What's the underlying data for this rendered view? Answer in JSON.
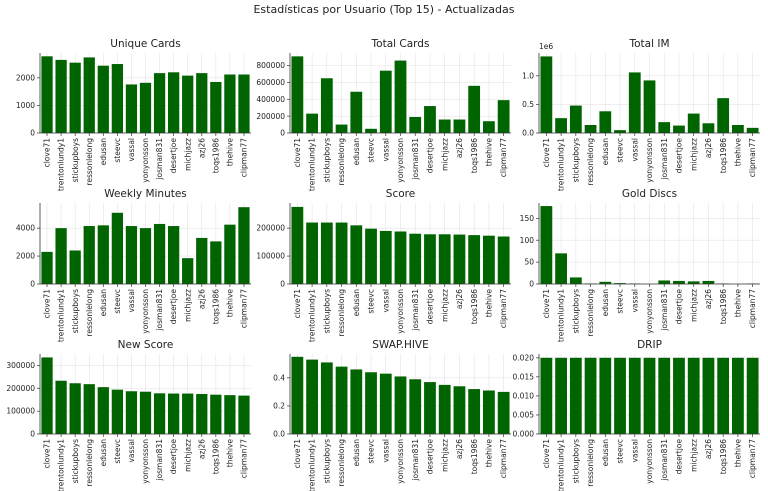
{
  "suptitle": "Estadísticas por Usuario (Top 15) - Actualizadas",
  "bar_color": "#006400",
  "chart_data": [
    {
      "type": "bar",
      "title": "Unique Cards",
      "categories": [
        "clove71",
        "trentonlundy1",
        "stickupboys",
        "ressonlelong",
        "edusan",
        "steevc",
        "vassal",
        "yonyonsson",
        "josman831",
        "desertjoe",
        "michjazz",
        "azj26",
        "toqs1986",
        "thehive",
        "clipman77"
      ],
      "values": [
        2780,
        2650,
        2550,
        2740,
        2440,
        2500,
        1760,
        1820,
        2170,
        2200,
        2080,
        2170,
        1850,
        2120,
        2120
      ],
      "ylim": [
        0,
        2900
      ],
      "yticks": [
        0,
        1000,
        2000
      ],
      "ytick_labels": [
        "0",
        "1000",
        "2000"
      ],
      "scale_label": ""
    },
    {
      "type": "bar",
      "title": "Total Cards",
      "categories": [
        "clove71",
        "trentonlundy1",
        "stickupboys",
        "ressonlelong",
        "edusan",
        "steevc",
        "vassal",
        "yonyonsson",
        "josman831",
        "desertjoe",
        "michjazz",
        "azj26",
        "toqs1986",
        "thehive",
        "clipman77"
      ],
      "values": [
        910000,
        230000,
        650000,
        100000,
        490000,
        50000,
        740000,
        860000,
        190000,
        320000,
        160000,
        160000,
        560000,
        140000,
        390000
      ],
      "ylim": [
        0,
        950000
      ],
      "yticks": [
        0,
        200000,
        400000,
        600000,
        800000
      ],
      "ytick_labels": [
        "0",
        "200000",
        "400000",
        "600000",
        "800000"
      ],
      "scale_label": ""
    },
    {
      "type": "bar",
      "title": "Total IM",
      "categories": [
        "clove71",
        "trentonlundy1",
        "stickupboys",
        "ressonlelong",
        "edusan",
        "steevc",
        "vassal",
        "yonyonsson",
        "josman831",
        "desertjoe",
        "michjazz",
        "azj26",
        "toqs1986",
        "thehive",
        "clipman77"
      ],
      "values": [
        1.34,
        0.26,
        0.48,
        0.14,
        0.38,
        0.05,
        1.06,
        0.92,
        0.19,
        0.13,
        0.34,
        0.17,
        0.61,
        0.14,
        0.09
      ],
      "ylim": [
        0,
        1.4
      ],
      "yticks": [
        0,
        0.5,
        1.0
      ],
      "ytick_labels": [
        "0.0",
        "0.5",
        "1.0"
      ],
      "scale_label": "1e6"
    },
    {
      "type": "bar",
      "title": "Weekly Minutes",
      "categories": [
        "clove71",
        "trentonlundy1",
        "stickupboys",
        "ressonlelong",
        "edusan",
        "steevc",
        "vassal",
        "yonyonsson",
        "josman831",
        "desertjoe",
        "michjazz",
        "azj26",
        "toqs1986",
        "thehive",
        "clipman77"
      ],
      "values": [
        2300,
        4000,
        2400,
        4150,
        4200,
        5100,
        4150,
        4000,
        4300,
        4150,
        1850,
        3300,
        3050,
        4250,
        5500
      ],
      "ylim": [
        0,
        5800
      ],
      "yticks": [
        0,
        2000,
        4000
      ],
      "ytick_labels": [
        "0",
        "2000",
        "4000"
      ],
      "scale_label": ""
    },
    {
      "type": "bar",
      "title": "Score",
      "categories": [
        "clove71",
        "trentonlundy1",
        "stickupboys",
        "ressonlelong",
        "edusan",
        "steevc",
        "vassal",
        "yonyonsson",
        "josman831",
        "desertjoe",
        "michjazz",
        "azj26",
        "toqs1986",
        "thehive",
        "clipman77"
      ],
      "values": [
        276000,
        220000,
        220000,
        220000,
        210000,
        198000,
        190000,
        188000,
        180000,
        178000,
        178000,
        177000,
        175000,
        173000,
        170000
      ],
      "ylim": [
        0,
        290000
      ],
      "yticks": [
        0,
        100000,
        200000
      ],
      "ytick_labels": [
        "0",
        "100000",
        "200000"
      ],
      "scale_label": ""
    },
    {
      "type": "bar",
      "title": "Gold Discs",
      "categories": [
        "clove71",
        "trentonlundy1",
        "stickupboys",
        "ressonlelong",
        "edusan",
        "steevc",
        "vassal",
        "yonyonsson",
        "josman831",
        "desertjoe",
        "michjazz",
        "azj26",
        "toqs1986",
        "thehive",
        "clipman77"
      ],
      "values": [
        178,
        70,
        15,
        1,
        5,
        2,
        1,
        0,
        8,
        7,
        6,
        7,
        1,
        0,
        1
      ],
      "ylim": [
        0,
        185
      ],
      "yticks": [
        0,
        50,
        100,
        150
      ],
      "ytick_labels": [
        "0",
        "50",
        "100",
        "150"
      ],
      "scale_label": ""
    },
    {
      "type": "bar",
      "title": "New Score",
      "categories": [
        "clove71",
        "trentonlundy1",
        "stickupboys",
        "ressonlelong",
        "edusan",
        "steevc",
        "vassal",
        "yonyonsson",
        "josman831",
        "desertjoe",
        "michjazz",
        "azj26",
        "toqs1986",
        "thehive",
        "clipman77"
      ],
      "values": [
        335000,
        233000,
        222000,
        218000,
        205000,
        194000,
        187000,
        185000,
        178000,
        177000,
        177000,
        175000,
        172000,
        170000,
        168000
      ],
      "ylim": [
        0,
        350000
      ],
      "yticks": [
        0,
        100000,
        200000,
        300000
      ],
      "ytick_labels": [
        "0",
        "100000",
        "200000",
        "300000"
      ],
      "scale_label": ""
    },
    {
      "type": "bar",
      "title": "SWAP.HIVE",
      "categories": [
        "clove71",
        "trentonlundy1",
        "stickupboys",
        "ressonlelong",
        "edusan",
        "steevc",
        "vassal",
        "yonyonsson",
        "josman831",
        "desertjoe",
        "michjazz",
        "azj26",
        "toqs1986",
        "thehive",
        "clipman77"
      ],
      "values": [
        0.55,
        0.53,
        0.51,
        0.48,
        0.46,
        0.44,
        0.43,
        0.41,
        0.39,
        0.37,
        0.35,
        0.34,
        0.32,
        0.31,
        0.3
      ],
      "ylim": [
        0,
        0.57
      ],
      "yticks": [
        0,
        0.2,
        0.4
      ],
      "ytick_labels": [
        "0.0",
        "0.2",
        "0.4"
      ],
      "scale_label": ""
    },
    {
      "type": "bar",
      "title": "DRIP",
      "categories": [
        "clove71",
        "trentonlundy1",
        "stickupboys",
        "ressonlelong",
        "edusan",
        "steevc",
        "vassal",
        "yonyonsson",
        "josman831",
        "desertjoe",
        "michjazz",
        "azj26",
        "toqs1986",
        "thehive",
        "clipman77"
      ],
      "values": [
        0.02,
        0.02,
        0.02,
        0.02,
        0.02,
        0.02,
        0.02,
        0.02,
        0.02,
        0.02,
        0.02,
        0.02,
        0.02,
        0.02,
        0.02
      ],
      "ylim": [
        0,
        0.021
      ],
      "yticks": [
        0,
        0.005,
        0.01,
        0.015,
        0.02
      ],
      "ytick_labels": [
        "0.000",
        "0.005",
        "0.010",
        "0.015",
        "0.020"
      ],
      "scale_label": ""
    }
  ]
}
